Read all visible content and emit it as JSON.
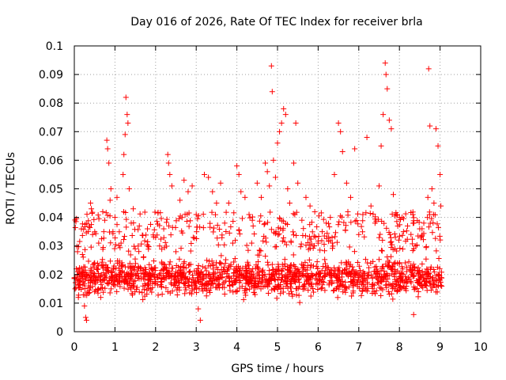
{
  "chart_data": {
    "type": "scatter",
    "title": "Day 016 of 2026, Rate Of TEC Index for receiver brla",
    "xlabel": "GPS time / hours",
    "ylabel": "ROTI / TECUs",
    "xlim": [
      0,
      10
    ],
    "ylim": [
      0,
      0.1
    ],
    "x_ticks": [
      "0",
      "1",
      "2",
      "3",
      "4",
      "5",
      "6",
      "7",
      "8",
      "9",
      "10"
    ],
    "y_ticks": [
      "0",
      "0.01",
      "0.02",
      "0.03",
      "0.04",
      "0.05",
      "0.06",
      "0.07",
      "0.08",
      "0.09",
      "0.1"
    ],
    "grid": true,
    "marker": "+",
    "color": "#ff0000",
    "data_range_hours": [
      0,
      9.05
    ],
    "series": [
      {
        "name": "ROTI",
        "points": [
          [
            0.02,
            0.015
          ],
          [
            0.05,
            0.022
          ],
          [
            0.08,
            0.028
          ],
          [
            0.1,
            0.012
          ],
          [
            0.15,
            0.018
          ],
          [
            0.2,
            0.027
          ],
          [
            0.25,
            0.009
          ],
          [
            0.28,
            0.005
          ],
          [
            0.3,
            0.004
          ],
          [
            0.35,
            0.016
          ],
          [
            0.4,
            0.045
          ],
          [
            0.42,
            0.043
          ],
          [
            0.45,
            0.034
          ],
          [
            0.5,
            0.014
          ],
          [
            0.55,
            0.022
          ],
          [
            0.6,
            0.031
          ],
          [
            0.65,
            0.012
          ],
          [
            0.7,
            0.042
          ],
          [
            0.75,
            0.039
          ],
          [
            0.8,
            0.067
          ],
          [
            0.82,
            0.064
          ],
          [
            0.85,
            0.059
          ],
          [
            0.88,
            0.046
          ],
          [
            0.9,
            0.05
          ],
          [
            0.95,
            0.035
          ],
          [
            1.0,
            0.04
          ],
          [
            1.05,
            0.047
          ],
          [
            1.1,
            0.024
          ],
          [
            1.15,
            0.031
          ],
          [
            1.2,
            0.055
          ],
          [
            1.22,
            0.062
          ],
          [
            1.25,
            0.069
          ],
          [
            1.27,
            0.082
          ],
          [
            1.3,
            0.076
          ],
          [
            1.32,
            0.073
          ],
          [
            1.35,
            0.05
          ],
          [
            1.4,
            0.038
          ],
          [
            1.45,
            0.043
          ],
          [
            1.5,
            0.029
          ],
          [
            1.6,
            0.037
          ],
          [
            1.7,
            0.026
          ],
          [
            1.8,
            0.036
          ],
          [
            1.9,
            0.022
          ],
          [
            2.0,
            0.033
          ],
          [
            2.1,
            0.03
          ],
          [
            2.2,
            0.036
          ],
          [
            2.3,
            0.062
          ],
          [
            2.32,
            0.059
          ],
          [
            2.35,
            0.055
          ],
          [
            2.4,
            0.051
          ],
          [
            2.5,
            0.028
          ],
          [
            2.6,
            0.046
          ],
          [
            2.7,
            0.053
          ],
          [
            2.8,
            0.049
          ],
          [
            2.9,
            0.051
          ],
          [
            3.0,
            0.041
          ],
          [
            3.05,
            0.008
          ],
          [
            3.1,
            0.004
          ],
          [
            3.2,
            0.055
          ],
          [
            3.3,
            0.054
          ],
          [
            3.4,
            0.049
          ],
          [
            3.5,
            0.045
          ],
          [
            3.6,
            0.052
          ],
          [
            3.7,
            0.038
          ],
          [
            3.8,
            0.045
          ],
          [
            3.9,
            0.031
          ],
          [
            4.0,
            0.058
          ],
          [
            4.05,
            0.055
          ],
          [
            4.1,
            0.049
          ],
          [
            4.2,
            0.047
          ],
          [
            4.3,
            0.041
          ],
          [
            4.4,
            0.037
          ],
          [
            4.5,
            0.052
          ],
          [
            4.6,
            0.047
          ],
          [
            4.7,
            0.059
          ],
          [
            4.75,
            0.056
          ],
          [
            4.8,
            0.051
          ],
          [
            4.85,
            0.093
          ],
          [
            4.87,
            0.084
          ],
          [
            4.9,
            0.06
          ],
          [
            4.95,
            0.054
          ],
          [
            5.0,
            0.066
          ],
          [
            5.05,
            0.07
          ],
          [
            5.1,
            0.073
          ],
          [
            5.15,
            0.078
          ],
          [
            5.2,
            0.076
          ],
          [
            5.25,
            0.05
          ],
          [
            5.3,
            0.045
          ],
          [
            5.4,
            0.059
          ],
          [
            5.45,
            0.073
          ],
          [
            5.5,
            0.052
          ],
          [
            5.6,
            0.039
          ],
          [
            5.7,
            0.047
          ],
          [
            5.8,
            0.044
          ],
          [
            5.9,
            0.03
          ],
          [
            6.0,
            0.031
          ],
          [
            6.1,
            0.035
          ],
          [
            6.2,
            0.038
          ],
          [
            6.3,
            0.04
          ],
          [
            6.4,
            0.055
          ],
          [
            6.5,
            0.073
          ],
          [
            6.55,
            0.07
          ],
          [
            6.6,
            0.063
          ],
          [
            6.7,
            0.052
          ],
          [
            6.8,
            0.047
          ],
          [
            6.9,
            0.064
          ],
          [
            7.0,
            0.034
          ],
          [
            7.1,
            0.041
          ],
          [
            7.2,
            0.068
          ],
          [
            7.3,
            0.044
          ],
          [
            7.4,
            0.038
          ],
          [
            7.5,
            0.051
          ],
          [
            7.55,
            0.065
          ],
          [
            7.6,
            0.076
          ],
          [
            7.65,
            0.094
          ],
          [
            7.67,
            0.09
          ],
          [
            7.7,
            0.085
          ],
          [
            7.75,
            0.074
          ],
          [
            7.8,
            0.071
          ],
          [
            7.85,
            0.048
          ],
          [
            7.9,
            0.033
          ],
          [
            8.0,
            0.04
          ],
          [
            8.1,
            0.035
          ],
          [
            8.2,
            0.037
          ],
          [
            8.3,
            0.02
          ],
          [
            8.35,
            0.006
          ],
          [
            8.4,
            0.03
          ],
          [
            8.5,
            0.036
          ],
          [
            8.6,
            0.038
          ],
          [
            8.7,
            0.047
          ],
          [
            8.72,
            0.092
          ],
          [
            8.75,
            0.072
          ],
          [
            8.8,
            0.05
          ],
          [
            8.85,
            0.045
          ],
          [
            8.9,
            0.071
          ],
          [
            8.95,
            0.065
          ],
          [
            9.0,
            0.055
          ],
          [
            9.02,
            0.044
          ]
        ]
      }
    ]
  }
}
